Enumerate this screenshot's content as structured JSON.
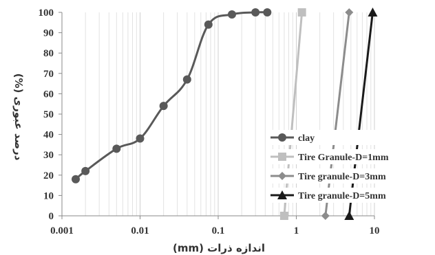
{
  "chart_data": {
    "type": "line",
    "x_scale": "log",
    "xlim": [
      0.001,
      10
    ],
    "ylim": [
      0,
      100
    ],
    "x_ticks": [
      "0.001",
      "0.01",
      "0.1",
      "1",
      "10"
    ],
    "y_ticks": [
      "0",
      "10",
      "20",
      "30",
      "40",
      "50",
      "60",
      "70",
      "80",
      "90",
      "100"
    ],
    "xlabel": "اندازه ذرات (mm)",
    "ylabel": "درصد عبوری (%)",
    "grid": "minor vertical gridlines on log axis",
    "legend_position": "right",
    "series": [
      {
        "name": "clay",
        "color": "#595959",
        "marker": "circle",
        "points": [
          [
            0.0015,
            18
          ],
          [
            0.002,
            22
          ],
          [
            0.005,
            33
          ],
          [
            0.01,
            38
          ],
          [
            0.02,
            54
          ],
          [
            0.04,
            67
          ],
          [
            0.075,
            94
          ],
          [
            0.15,
            99
          ],
          [
            0.3,
            100
          ],
          [
            0.425,
            100
          ]
        ]
      },
      {
        "name": "Tire Granule-D=1mm",
        "color": "#bfbfbf",
        "marker": "square",
        "points": [
          [
            0.7,
            0
          ],
          [
            1.18,
            100
          ]
        ]
      },
      {
        "name": "Tire granule-D=3mm",
        "color": "#8c8c8c",
        "marker": "diamond",
        "points": [
          [
            2.36,
            0
          ],
          [
            4.75,
            100
          ]
        ]
      },
      {
        "name": "Tire granule-D=5mm",
        "color": "#1a1a1a",
        "marker": "triangle",
        "points": [
          [
            4.75,
            0
          ],
          [
            9.5,
            100
          ]
        ]
      }
    ]
  }
}
